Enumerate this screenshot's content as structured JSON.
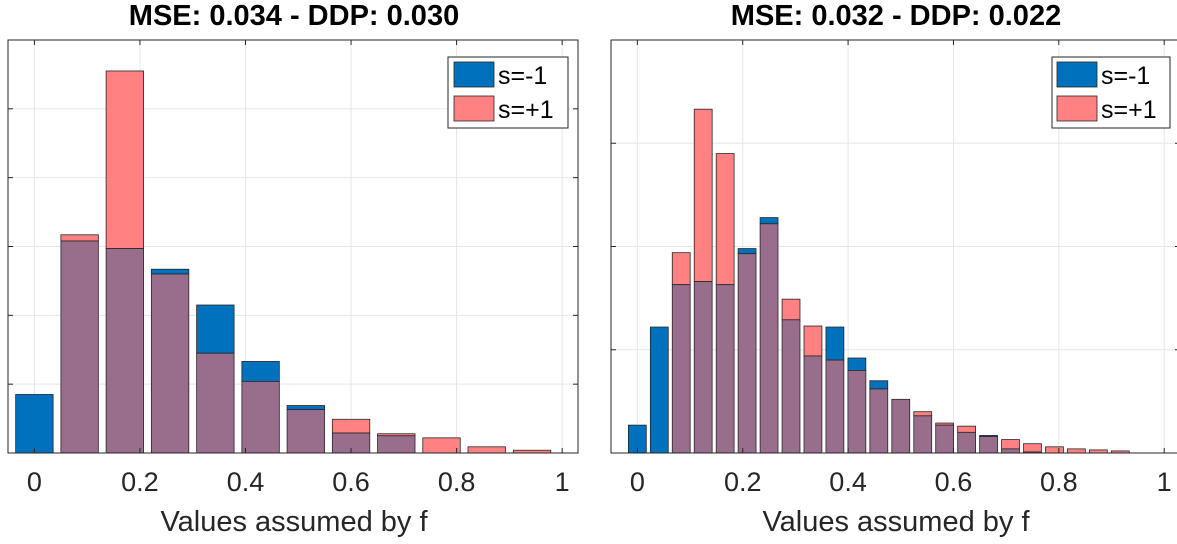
{
  "chart_data": [
    {
      "type": "bar",
      "title": "MSE: 0.034 - DDP: 0.030",
      "xlabel": "Values assumed by f",
      "ylabel": "",
      "xlim": [
        -0.05,
        1.03
      ],
      "ylim": [
        0,
        6
      ],
      "xticks": [
        0,
        0.2,
        0.4,
        0.6,
        0.8,
        1
      ],
      "xtick_labels": [
        "0",
        "0.2",
        "0.4",
        "0.6",
        "0.8",
        "1"
      ],
      "grid": true,
      "legend_position": "top-right",
      "bar_width": 0.071,
      "x": [
        0,
        0.0857,
        0.1714,
        0.2571,
        0.3429,
        0.4286,
        0.5143,
        0.6,
        0.6857,
        0.7714,
        0.8571,
        0.9429
      ],
      "series": [
        {
          "name": "s=-1",
          "color": "#0072BD",
          "values": [
            0.85,
            3.08,
            2.97,
            2.67,
            2.15,
            1.33,
            0.69,
            0.29,
            0.25,
            0,
            0,
            0
          ]
        },
        {
          "name": "s=+1",
          "color": "#FF6B6B",
          "values": [
            0,
            3.17,
            5.55,
            2.6,
            1.45,
            1.04,
            0.63,
            0.49,
            0.28,
            0.22,
            0.09,
            0.04
          ]
        }
      ]
    },
    {
      "type": "bar",
      "title": "MSE: 0.032 - DDP: 0.022",
      "xlabel": "Values assumed by f",
      "ylabel": "",
      "xlim": [
        -0.05,
        1.03
      ],
      "ylim": [
        0,
        4
      ],
      "xticks": [
        0,
        0.2,
        0.4,
        0.6,
        0.8,
        1
      ],
      "xtick_labels": [
        "0",
        "0.2",
        "0.4",
        "0.6",
        "0.8",
        "1"
      ],
      "grid": true,
      "legend_position": "top-right",
      "bar_width": 0.034,
      "x": [
        0,
        0.0417,
        0.0833,
        0.125,
        0.1667,
        0.2083,
        0.25,
        0.2917,
        0.3333,
        0.375,
        0.4167,
        0.4583,
        0.5,
        0.5417,
        0.5833,
        0.625,
        0.6667,
        0.7083,
        0.75,
        0.7917,
        0.8333,
        0.875,
        0.9167
      ],
      "series": [
        {
          "name": "s=-1",
          "color": "#0072BD",
          "values": [
            0.27,
            1.22,
            1.63,
            1.66,
            1.63,
            1.98,
            2.28,
            1.29,
            0.94,
            1.22,
            0.92,
            0.7,
            0.52,
            0.36,
            0.27,
            0.2,
            0.17,
            0.04,
            0.01,
            0,
            0,
            0,
            0
          ]
        },
        {
          "name": "s=+1",
          "color": "#FF6B6B",
          "values": [
            0,
            0,
            1.94,
            3.33,
            2.9,
            1.93,
            2.22,
            1.49,
            1.23,
            0.9,
            0.8,
            0.62,
            0.52,
            0.4,
            0.29,
            0.26,
            0.16,
            0.13,
            0.09,
            0.06,
            0.04,
            0.03,
            0.02
          ]
        }
      ]
    }
  ]
}
